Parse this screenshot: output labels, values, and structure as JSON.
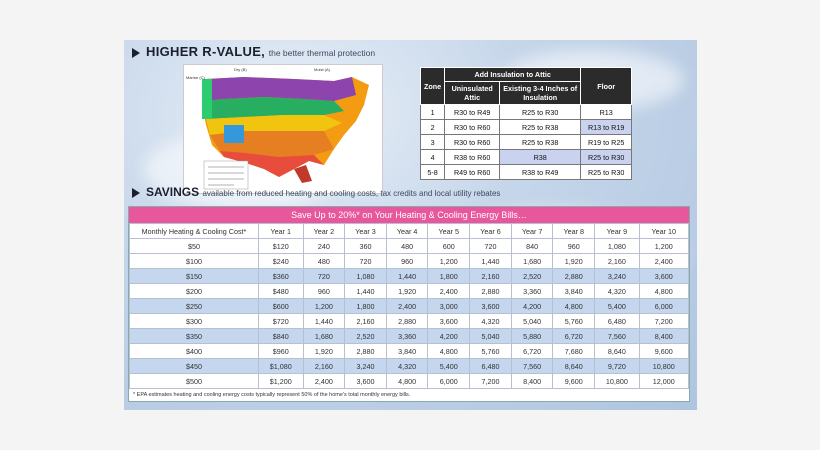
{
  "header1": {
    "title": "HIGHER R-VALUE,",
    "subtitle": "the better thermal protection"
  },
  "map": {
    "label_dry": "Dry (B)",
    "label_moist": "Moist (A)",
    "label_marine": "Marine (C)",
    "legend": "Zone legend"
  },
  "rtable": {
    "headers": {
      "zone": "Zone",
      "group": "Add Insulation to Attic",
      "uninsulated": "Uninsulated Attic",
      "existing": "Existing 3-4 Inches of Insulation",
      "floor": "Floor"
    },
    "rows": [
      {
        "zone": "1",
        "uninsulated": "R30 to R49",
        "existing": "R25 to R30",
        "floor": "R13"
      },
      {
        "zone": "2",
        "uninsulated": "R30 to R60",
        "existing": "R25 to R38",
        "floor": "R13 to R19"
      },
      {
        "zone": "3",
        "uninsulated": "R30 to R60",
        "existing": "R25 to R38",
        "floor": "R19 to R25"
      },
      {
        "zone": "4",
        "uninsulated": "R38 to R60",
        "existing": "R38",
        "floor": "R25 to R30"
      },
      {
        "zone": "5-8",
        "uninsulated": "R49 to R60",
        "existing": "R38 to R49",
        "floor": "R25 to R30"
      }
    ]
  },
  "header2": {
    "title": "SAVINGS",
    "subtitle": "available from reduced heating and cooling costs, tax credits and local utility rebates"
  },
  "stable": {
    "banner": "Save Up to 20%* on Your Heating & Cooling Energy Bills…",
    "headers": [
      "Monthly Heating & Cooling Cost*",
      "Year 1",
      "Year 2",
      "Year 3",
      "Year 4",
      "Year 5",
      "Year 6",
      "Year 7",
      "Year 8",
      "Year 9",
      "Year 10"
    ],
    "rows": [
      [
        "$50",
        "$120",
        "240",
        "360",
        "480",
        "600",
        "720",
        "840",
        "960",
        "1,080",
        "1,200"
      ],
      [
        "$100",
        "$240",
        "480",
        "720",
        "960",
        "1,200",
        "1,440",
        "1,680",
        "1,920",
        "2,160",
        "2,400"
      ],
      [
        "$150",
        "$360",
        "720",
        "1,080",
        "1,440",
        "1,800",
        "2,160",
        "2,520",
        "2,880",
        "3,240",
        "3,600"
      ],
      [
        "$200",
        "$480",
        "960",
        "1,440",
        "1,920",
        "2,400",
        "2,880",
        "3,360",
        "3,840",
        "4,320",
        "4,800"
      ],
      [
        "$250",
        "$600",
        "1,200",
        "1,800",
        "2,400",
        "3,000",
        "3,600",
        "4,200",
        "4,800",
        "5,400",
        "6,000"
      ],
      [
        "$300",
        "$720",
        "1,440",
        "2,160",
        "2,880",
        "3,600",
        "4,320",
        "5,040",
        "5,760",
        "6,480",
        "7,200"
      ],
      [
        "$350",
        "$840",
        "1,680",
        "2,520",
        "3,360",
        "4,200",
        "5,040",
        "5,880",
        "6,720",
        "7,560",
        "8,400"
      ],
      [
        "$400",
        "$960",
        "1,920",
        "2,880",
        "3,840",
        "4,800",
        "5,760",
        "6,720",
        "7,680",
        "8,640",
        "9,600"
      ],
      [
        "$450",
        "$1,080",
        "2,160",
        "3,240",
        "4,320",
        "5,400",
        "6,480",
        "7,560",
        "8,640",
        "9,720",
        "10,800"
      ],
      [
        "$500",
        "$1,200",
        "2,400",
        "3,600",
        "4,800",
        "6,000",
        "7,200",
        "8,400",
        "9,600",
        "10,800",
        "12,000"
      ]
    ],
    "footnote": "* EPA estimates heating and cooling energy costs typically represent 50% of the home's total monthly energy bills."
  }
}
